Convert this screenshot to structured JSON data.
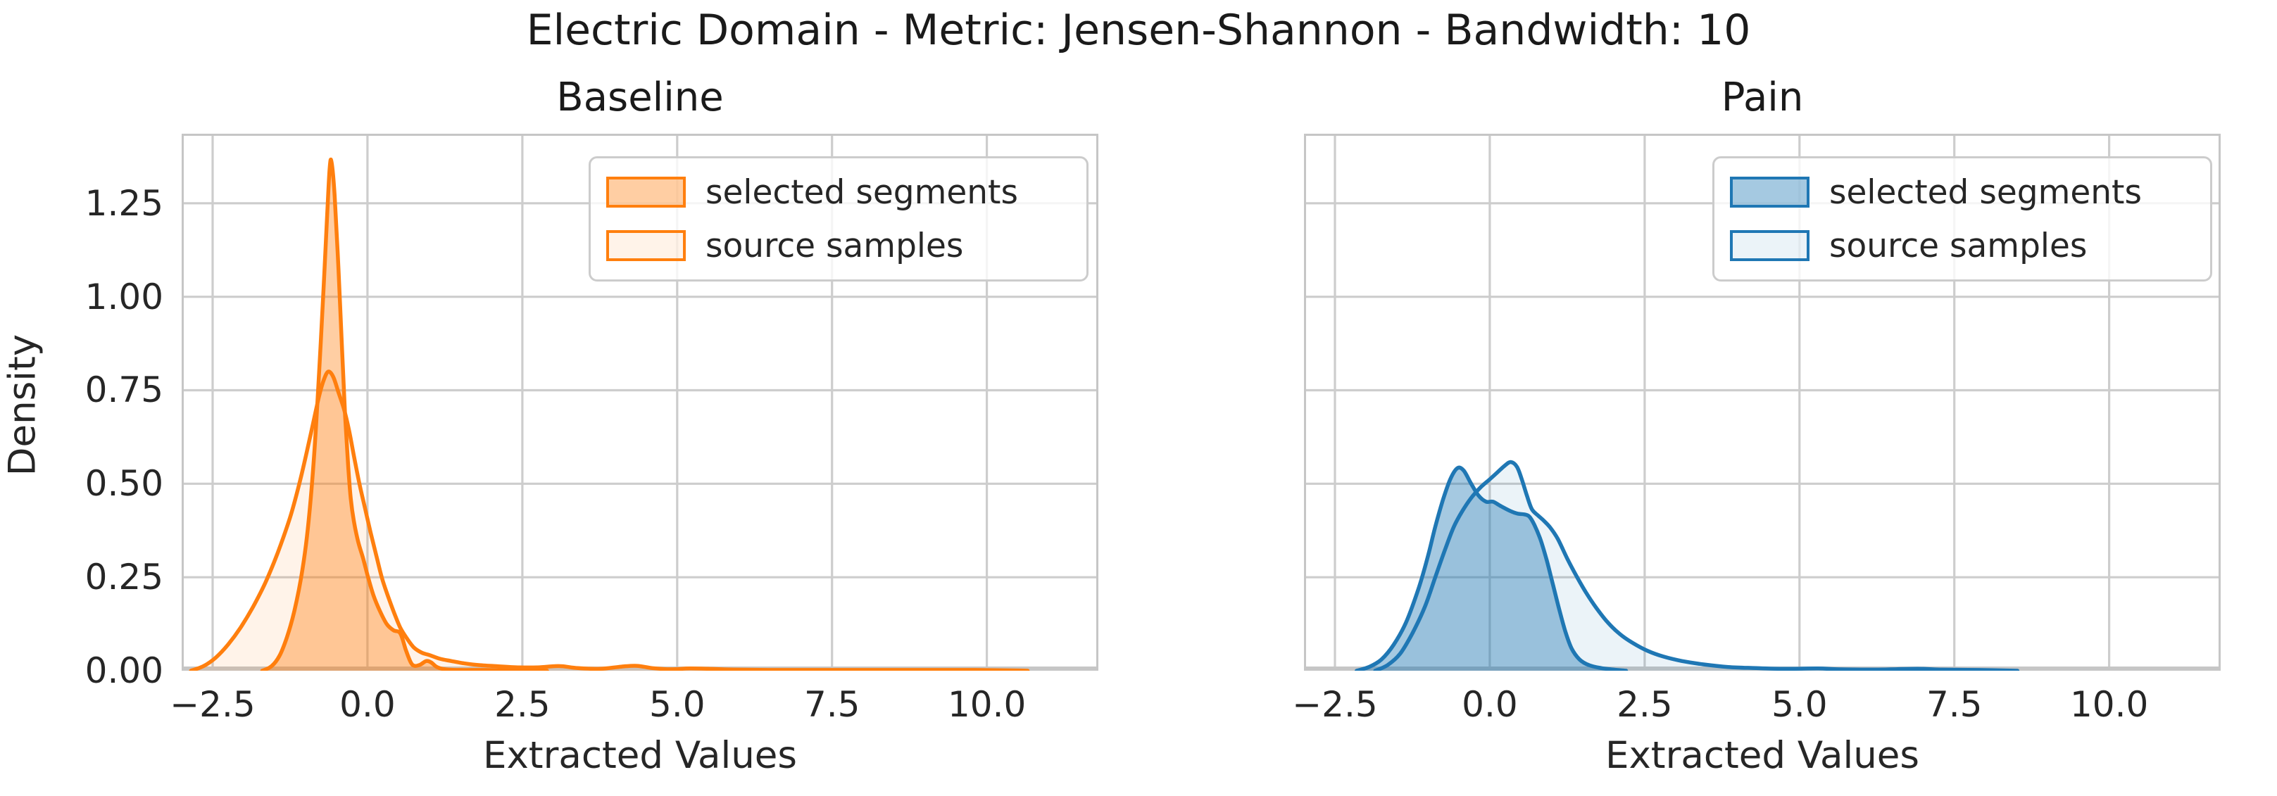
{
  "header": {
    "title": "Electric Domain - Metric: Jensen-Shannon - Bandwidth: 10"
  },
  "palette": {
    "orange": "#ff7f0e",
    "blue": "#1f77b4",
    "grid": "#cdcdcd",
    "spine": "#c6c6c6",
    "text": "#262626",
    "title_text": "#1a1a1a"
  },
  "chart_data": [
    {
      "type": "area",
      "subtype": "kde-density",
      "title": "Baseline",
      "xlabel": "Extracted Values",
      "ylabel": "Density",
      "color": "#ff7f0e",
      "xlim": [
        -3.0,
        11.8
      ],
      "ylim": [
        0,
        1.436
      ],
      "xticks": [
        -2.5,
        0.0,
        2.5,
        5.0,
        7.5,
        10.0
      ],
      "xtick_labels": [
        "−2.5",
        "0.0",
        "2.5",
        "5.0",
        "7.5",
        "10.0"
      ],
      "yticks": [
        0.0,
        0.25,
        0.5,
        0.75,
        1.0,
        1.25
      ],
      "ytick_labels": [
        "0.00",
        "0.25",
        "0.50",
        "0.75",
        "1.00",
        "1.25"
      ],
      "grid": true,
      "legend_position": "upper right",
      "show_ytick_labels": true,
      "series": [
        {
          "name": "selected segments",
          "fill_opacity": 0.38,
          "peak": {
            "x": -0.6,
            "y": 1.36
          },
          "points": [
            [
              -1.7,
              0.0
            ],
            [
              -1.55,
              0.012
            ],
            [
              -1.42,
              0.04
            ],
            [
              -1.3,
              0.09
            ],
            [
              -1.18,
              0.16
            ],
            [
              -1.05,
              0.27
            ],
            [
              -0.95,
              0.4
            ],
            [
              -0.86,
              0.58
            ],
            [
              -0.78,
              0.8
            ],
            [
              -0.71,
              1.02
            ],
            [
              -0.65,
              1.22
            ],
            [
              -0.61,
              1.345
            ],
            [
              -0.58,
              1.36
            ],
            [
              -0.53,
              1.27
            ],
            [
              -0.47,
              1.08
            ],
            [
              -0.41,
              0.86
            ],
            [
              -0.36,
              0.68
            ],
            [
              -0.31,
              0.545
            ],
            [
              -0.27,
              0.46
            ],
            [
              -0.22,
              0.4
            ],
            [
              -0.15,
              0.345
            ],
            [
              -0.07,
              0.3
            ],
            [
              0.01,
              0.25
            ],
            [
              0.1,
              0.2
            ],
            [
              0.2,
              0.16
            ],
            [
              0.31,
              0.125
            ],
            [
              0.42,
              0.108
            ],
            [
              0.53,
              0.1
            ],
            [
              0.62,
              0.055
            ],
            [
              0.7,
              0.022
            ],
            [
              0.76,
              0.013
            ],
            [
              0.85,
              0.016
            ],
            [
              0.95,
              0.026
            ],
            [
              1.03,
              0.022
            ],
            [
              1.12,
              0.01
            ],
            [
              1.25,
              0.004
            ],
            [
              1.5,
              0.002
            ],
            [
              1.9,
              0.002
            ],
            [
              2.4,
              0.001
            ],
            [
              2.9,
              0.0
            ]
          ]
        },
        {
          "name": "source samples",
          "fill_opacity": 0.09,
          "peak": {
            "x": -0.65,
            "y": 0.8
          },
          "points": [
            [
              -2.85,
              0.0
            ],
            [
              -2.65,
              0.012
            ],
            [
              -2.45,
              0.035
            ],
            [
              -2.25,
              0.07
            ],
            [
              -2.05,
              0.115
            ],
            [
              -1.85,
              0.17
            ],
            [
              -1.65,
              0.235
            ],
            [
              -1.45,
              0.315
            ],
            [
              -1.25,
              0.41
            ],
            [
              -1.1,
              0.5
            ],
            [
              -0.98,
              0.585
            ],
            [
              -0.88,
              0.66
            ],
            [
              -0.78,
              0.735
            ],
            [
              -0.7,
              0.78
            ],
            [
              -0.63,
              0.8
            ],
            [
              -0.55,
              0.785
            ],
            [
              -0.47,
              0.745
            ],
            [
              -0.38,
              0.7
            ],
            [
              -0.3,
              0.645
            ],
            [
              -0.22,
              0.575
            ],
            [
              -0.13,
              0.5
            ],
            [
              -0.04,
              0.435
            ],
            [
              0.05,
              0.37
            ],
            [
              0.14,
              0.31
            ],
            [
              0.23,
              0.25
            ],
            [
              0.33,
              0.2
            ],
            [
              0.43,
              0.155
            ],
            [
              0.53,
              0.115
            ],
            [
              0.63,
              0.088
            ],
            [
              0.75,
              0.062
            ],
            [
              0.88,
              0.048
            ],
            [
              1.0,
              0.042
            ],
            [
              1.17,
              0.032
            ],
            [
              1.35,
              0.026
            ],
            [
              1.55,
              0.02
            ],
            [
              1.8,
              0.015
            ],
            [
              2.1,
              0.012
            ],
            [
              2.45,
              0.009
            ],
            [
              2.75,
              0.009
            ],
            [
              3.0,
              0.012
            ],
            [
              3.15,
              0.012
            ],
            [
              3.4,
              0.007
            ],
            [
              3.75,
              0.005
            ],
            [
              4.1,
              0.011
            ],
            [
              4.35,
              0.013
            ],
            [
              4.6,
              0.007
            ],
            [
              4.9,
              0.004
            ],
            [
              5.2,
              0.006
            ],
            [
              5.5,
              0.005
            ],
            [
              5.9,
              0.003
            ],
            [
              6.5,
              0.002
            ],
            [
              7.2,
              0.002
            ],
            [
              8.0,
              0.002
            ],
            [
              9.0,
              0.002
            ],
            [
              9.8,
              0.002
            ],
            [
              10.4,
              0.001
            ],
            [
              10.66,
              0.0
            ]
          ]
        }
      ]
    },
    {
      "type": "area",
      "subtype": "kde-density",
      "title": "Pain",
      "xlabel": "Extracted Values",
      "ylabel": "Density",
      "color": "#1f77b4",
      "xlim": [
        -3.0,
        11.8
      ],
      "ylim": [
        0,
        1.436
      ],
      "xticks": [
        -2.5,
        0.0,
        2.5,
        5.0,
        7.5,
        10.0
      ],
      "xtick_labels": [
        "−2.5",
        "0.0",
        "2.5",
        "5.0",
        "7.5",
        "10.0"
      ],
      "yticks": [
        0.0,
        0.25,
        0.5,
        0.75,
        1.0,
        1.25
      ],
      "ytick_labels": [
        "0.00",
        "0.25",
        "0.50",
        "0.75",
        "1.00",
        "1.25"
      ],
      "grid": true,
      "legend_position": "upper right",
      "show_ytick_labels": false,
      "series": [
        {
          "name": "selected segments",
          "fill_opacity": 0.4,
          "peak": {
            "x": -0.5,
            "y": 0.545
          },
          "points": [
            [
              -2.15,
              0.0
            ],
            [
              -1.95,
              0.01
            ],
            [
              -1.75,
              0.03
            ],
            [
              -1.55,
              0.07
            ],
            [
              -1.35,
              0.13
            ],
            [
              -1.15,
              0.22
            ],
            [
              -1.0,
              0.305
            ],
            [
              -0.88,
              0.385
            ],
            [
              -0.75,
              0.46
            ],
            [
              -0.63,
              0.515
            ],
            [
              -0.52,
              0.542
            ],
            [
              -0.42,
              0.535
            ],
            [
              -0.3,
              0.5
            ],
            [
              -0.18,
              0.468
            ],
            [
              -0.06,
              0.452
            ],
            [
              0.05,
              0.452
            ],
            [
              0.18,
              0.44
            ],
            [
              0.32,
              0.428
            ],
            [
              0.45,
              0.42
            ],
            [
              0.56,
              0.418
            ],
            [
              0.64,
              0.412
            ],
            [
              0.72,
              0.39
            ],
            [
              0.82,
              0.35
            ],
            [
              0.92,
              0.295
            ],
            [
              1.02,
              0.23
            ],
            [
              1.12,
              0.165
            ],
            [
              1.22,
              0.105
            ],
            [
              1.32,
              0.06
            ],
            [
              1.45,
              0.03
            ],
            [
              1.6,
              0.015
            ],
            [
              1.8,
              0.007
            ],
            [
              2.0,
              0.003
            ],
            [
              2.2,
              0.0
            ]
          ]
        },
        {
          "name": "source samples",
          "fill_opacity": 0.09,
          "peak": {
            "x": 0.35,
            "y": 0.56
          },
          "points": [
            [
              -1.85,
              0.0
            ],
            [
              -1.65,
              0.015
            ],
            [
              -1.45,
              0.045
            ],
            [
              -1.25,
              0.1
            ],
            [
              -1.05,
              0.17
            ],
            [
              -0.88,
              0.25
            ],
            [
              -0.72,
              0.325
            ],
            [
              -0.58,
              0.385
            ],
            [
              -0.45,
              0.425
            ],
            [
              -0.3,
              0.462
            ],
            [
              -0.15,
              0.49
            ],
            [
              0.0,
              0.512
            ],
            [
              0.12,
              0.53
            ],
            [
              0.24,
              0.548
            ],
            [
              0.34,
              0.558
            ],
            [
              0.44,
              0.545
            ],
            [
              0.52,
              0.51
            ],
            [
              0.6,
              0.468
            ],
            [
              0.68,
              0.432
            ],
            [
              0.78,
              0.415
            ],
            [
              0.88,
              0.4
            ],
            [
              0.98,
              0.382
            ],
            [
              1.1,
              0.352
            ],
            [
              1.25,
              0.3
            ],
            [
              1.4,
              0.253
            ],
            [
              1.55,
              0.21
            ],
            [
              1.72,
              0.168
            ],
            [
              1.9,
              0.13
            ],
            [
              2.1,
              0.098
            ],
            [
              2.3,
              0.075
            ],
            [
              2.55,
              0.053
            ],
            [
              2.8,
              0.038
            ],
            [
              3.1,
              0.026
            ],
            [
              3.45,
              0.017
            ],
            [
              3.85,
              0.01
            ],
            [
              4.3,
              0.007
            ],
            [
              4.8,
              0.005
            ],
            [
              5.3,
              0.006
            ],
            [
              5.6,
              0.004
            ],
            [
              6.2,
              0.003
            ],
            [
              6.9,
              0.005
            ],
            [
              7.3,
              0.003
            ],
            [
              7.9,
              0.002
            ],
            [
              8.52,
              0.0
            ]
          ]
        }
      ]
    }
  ]
}
